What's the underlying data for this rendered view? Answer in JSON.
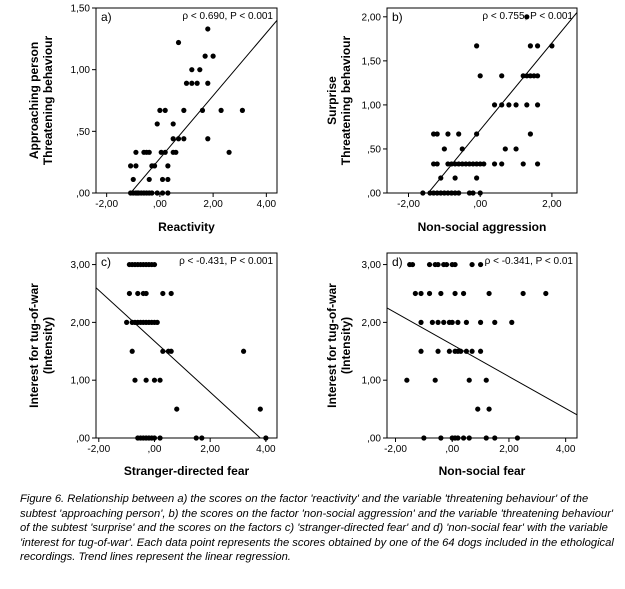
{
  "figure_caption": "Figure 6. Relationship between a) the scores on the factor 'reactivity' and the variable 'threatening behaviour' of the subtest 'approaching person', b) the scores on the factor 'non-social aggression' and the variable 'threatening behaviour' of the subtest 'surprise' and the scores on the factors c) 'stranger-directed fear' and d) 'non-social fear' with the variable 'interest for tug-of-war'. Each data point represents the scores obtained by one of the 64 dogs included in the ethological recordings. Trend lines represent the linear regression.",
  "chart_data": [
    {
      "type": "scatter",
      "panel": "a)",
      "stat": "ρ < 0.690, P < 0.001",
      "xlabel": "Reactivity",
      "ylabel_lines": [
        "Approaching person",
        "Threatening behaviour"
      ],
      "xlim": [
        -2.4,
        4.4
      ],
      "ylim": [
        0,
        1.5
      ],
      "xticks": [
        -2,
        0,
        2,
        4
      ],
      "xtick_labels": [
        "-2,00",
        ",00",
        "2,00",
        "4,00"
      ],
      "yticks": [
        0,
        0.5,
        1,
        1.5
      ],
      "ytick_labels": [
        ",00",
        ",50",
        "1,00",
        "1,50"
      ],
      "trend": {
        "from": [
          -1.1,
          0
        ],
        "to": [
          4.4,
          1.4
        ]
      },
      "points": [
        [
          -1.1,
          0
        ],
        [
          -1.0,
          0
        ],
        [
          -0.9,
          0
        ],
        [
          -0.85,
          0
        ],
        [
          -0.8,
          0
        ],
        [
          -0.7,
          0
        ],
        [
          -0.6,
          0
        ],
        [
          -0.5,
          0
        ],
        [
          -0.4,
          0
        ],
        [
          -0.3,
          0
        ],
        [
          -0.1,
          0
        ],
        [
          0.1,
          0
        ],
        [
          0.3,
          0
        ],
        [
          -1.0,
          0.11
        ],
        [
          -0.4,
          0.11
        ],
        [
          0.1,
          0.11
        ],
        [
          0.3,
          0.11
        ],
        [
          -1.1,
          0.22
        ],
        [
          -0.9,
          0.22
        ],
        [
          -0.3,
          0.22
        ],
        [
          -0.2,
          0.22
        ],
        [
          0.3,
          0.22
        ],
        [
          -0.9,
          0.33
        ],
        [
          -0.6,
          0.33
        ],
        [
          -0.5,
          0.33
        ],
        [
          -0.4,
          0.33
        ],
        [
          0.05,
          0.33
        ],
        [
          0.2,
          0.33
        ],
        [
          0.5,
          0.33
        ],
        [
          0.6,
          0.33
        ],
        [
          2.6,
          0.33
        ],
        [
          0.5,
          0.44
        ],
        [
          0.7,
          0.44
        ],
        [
          0.9,
          0.44
        ],
        [
          1.8,
          0.44
        ],
        [
          -0.1,
          0.56
        ],
        [
          0.5,
          0.56
        ],
        [
          0,
          0.67
        ],
        [
          0.2,
          0.67
        ],
        [
          0.9,
          0.67
        ],
        [
          1.6,
          0.67
        ],
        [
          2.3,
          0.67
        ],
        [
          3.1,
          0.67
        ],
        [
          1.0,
          0.89
        ],
        [
          1.2,
          0.89
        ],
        [
          1.4,
          0.89
        ],
        [
          1.8,
          0.89
        ],
        [
          1.2,
          1.0
        ],
        [
          1.5,
          1.0
        ],
        [
          1.7,
          1.11
        ],
        [
          2.0,
          1.11
        ],
        [
          0.7,
          1.22
        ],
        [
          1.8,
          1.33
        ]
      ]
    },
    {
      "type": "scatter",
      "panel": "b)",
      "stat": "ρ < 0.755, P < 0.001",
      "xlabel": "Non-social aggression",
      "ylabel_lines": [
        "Surprise",
        "Threatening behaviour"
      ],
      "xlim": [
        -2.6,
        2.7
      ],
      "ylim": [
        0,
        2.1
      ],
      "xticks": [
        -2,
        0,
        2
      ],
      "xtick_labels": [
        "-2,00",
        ",00",
        "2,00"
      ],
      "yticks": [
        0,
        0.5,
        1,
        1.5,
        2
      ],
      "ytick_labels": [
        ",00",
        ",50",
        "1,00",
        "1,50",
        "2,00"
      ],
      "trend": {
        "from": [
          -1.45,
          0
        ],
        "to": [
          2.7,
          2.05
        ]
      },
      "points": [
        [
          -1.6,
          0
        ],
        [
          -1.4,
          0
        ],
        [
          -1.3,
          0
        ],
        [
          -1.2,
          0
        ],
        [
          -1.1,
          0
        ],
        [
          -1.0,
          0
        ],
        [
          -0.9,
          0
        ],
        [
          -0.8,
          0
        ],
        [
          -0.7,
          0
        ],
        [
          -0.6,
          0
        ],
        [
          -0.3,
          0
        ],
        [
          -0.2,
          0
        ],
        [
          0,
          0
        ],
        [
          -1.1,
          0.17
        ],
        [
          -0.7,
          0.17
        ],
        [
          -0.1,
          0.17
        ],
        [
          -1.3,
          0.33
        ],
        [
          -1.2,
          0.33
        ],
        [
          -0.9,
          0.33
        ],
        [
          -0.8,
          0.33
        ],
        [
          -0.7,
          0.33
        ],
        [
          -0.6,
          0.33
        ],
        [
          -0.5,
          0.33
        ],
        [
          -0.4,
          0.33
        ],
        [
          -0.3,
          0.33
        ],
        [
          -0.2,
          0.33
        ],
        [
          -0.1,
          0.33
        ],
        [
          0,
          0.33
        ],
        [
          0.1,
          0.33
        ],
        [
          0.4,
          0.33
        ],
        [
          0.6,
          0.33
        ],
        [
          1.2,
          0.33
        ],
        [
          1.6,
          0.33
        ],
        [
          -1.3,
          0.67
        ],
        [
          -1.2,
          0.67
        ],
        [
          -0.9,
          0.67
        ],
        [
          -0.6,
          0.67
        ],
        [
          -0.1,
          0.67
        ],
        [
          1.4,
          0.67
        ],
        [
          -1.0,
          0.5
        ],
        [
          -0.5,
          0.5
        ],
        [
          0.7,
          0.5
        ],
        [
          1.0,
          0.5
        ],
        [
          0.4,
          1.0
        ],
        [
          0.6,
          1.0
        ],
        [
          0.8,
          1.0
        ],
        [
          1.0,
          1.0
        ],
        [
          1.3,
          1.0
        ],
        [
          1.6,
          1.0
        ],
        [
          0,
          1.33
        ],
        [
          0.6,
          1.33
        ],
        [
          1.2,
          1.33
        ],
        [
          1.3,
          1.33
        ],
        [
          1.4,
          1.33
        ],
        [
          1.5,
          1.33
        ],
        [
          1.6,
          1.33
        ],
        [
          -0.1,
          1.67
        ],
        [
          1.4,
          1.67
        ],
        [
          1.6,
          1.67
        ],
        [
          2.0,
          1.67
        ],
        [
          1.3,
          2.0
        ]
      ]
    },
    {
      "type": "scatter",
      "panel": "c)",
      "stat": "ρ < -0.431, P < 0.001",
      "xlabel": "Stranger-directed fear",
      "ylabel_lines": [
        "Interest for tug-of-war",
        "(Intensity)"
      ],
      "xlim": [
        -2.1,
        4.4
      ],
      "ylim": [
        0,
        3.2
      ],
      "xticks": [
        -2,
        0,
        2,
        4
      ],
      "xtick_labels": [
        "-2,00",
        ",00",
        "2,00",
        "4,00"
      ],
      "yticks": [
        0,
        1,
        2,
        3
      ],
      "ytick_labels": [
        ",00",
        "1,00",
        "2,00",
        "3,00"
      ],
      "trend": {
        "from": [
          -2.1,
          2.6
        ],
        "to": [
          3.8,
          0
        ]
      },
      "points": [
        [
          -0.9,
          3
        ],
        [
          -0.8,
          3
        ],
        [
          -0.7,
          3
        ],
        [
          -0.6,
          3
        ],
        [
          -0.5,
          3
        ],
        [
          -0.4,
          3
        ],
        [
          -0.3,
          3
        ],
        [
          -0.2,
          3
        ],
        [
          -0.1,
          3
        ],
        [
          0,
          3
        ],
        [
          -0.9,
          2.5
        ],
        [
          -0.6,
          2.5
        ],
        [
          -0.4,
          2.5
        ],
        [
          -0.3,
          2.5
        ],
        [
          0.3,
          2.5
        ],
        [
          0.6,
          2.5
        ],
        [
          -1.0,
          2
        ],
        [
          -0.8,
          2
        ],
        [
          -0.7,
          2
        ],
        [
          -0.6,
          2
        ],
        [
          -0.5,
          2
        ],
        [
          -0.4,
          2
        ],
        [
          -0.3,
          2
        ],
        [
          -0.2,
          2
        ],
        [
          -0.1,
          2
        ],
        [
          0,
          2
        ],
        [
          0.1,
          2
        ],
        [
          -0.8,
          1.5
        ],
        [
          0.3,
          1.5
        ],
        [
          0.5,
          1.5
        ],
        [
          0.6,
          1.5
        ],
        [
          3.2,
          1.5
        ],
        [
          -0.7,
          1.0
        ],
        [
          -0.3,
          1.0
        ],
        [
          0,
          1.0
        ],
        [
          0.2,
          1.0
        ],
        [
          0.8,
          0.5
        ],
        [
          3.8,
          0.5
        ],
        [
          -0.6,
          0
        ],
        [
          -0.5,
          0
        ],
        [
          -0.4,
          0
        ],
        [
          -0.3,
          0
        ],
        [
          -0.2,
          0
        ],
        [
          -0.1,
          0
        ],
        [
          0,
          0
        ],
        [
          0.2,
          0
        ],
        [
          1.5,
          0
        ],
        [
          1.7,
          0
        ],
        [
          4.0,
          0
        ]
      ]
    },
    {
      "type": "scatter",
      "panel": "d)",
      "stat": "ρ < -0.341, P < 0.01",
      "xlabel": "Non-social fear",
      "ylabel_lines": [
        "Interest for tug-of-war",
        "(Intensity)"
      ],
      "xlim": [
        -2.3,
        4.4
      ],
      "ylim": [
        0,
        3.2
      ],
      "xticks": [
        -2,
        0,
        2,
        4
      ],
      "xtick_labels": [
        "-2,00",
        ",00",
        "2,00",
        "4,00"
      ],
      "yticks": [
        0,
        1,
        2,
        3
      ],
      "ytick_labels": [
        ",00",
        "1,00",
        "2,00",
        "3,00"
      ],
      "trend": {
        "from": [
          -2.3,
          2.25
        ],
        "to": [
          4.4,
          0.4
        ]
      },
      "points": [
        [
          -1.5,
          3
        ],
        [
          -1.4,
          3
        ],
        [
          -0.8,
          3
        ],
        [
          -0.6,
          3
        ],
        [
          -0.5,
          3
        ],
        [
          -0.3,
          3
        ],
        [
          -0.2,
          3
        ],
        [
          0,
          3
        ],
        [
          0.1,
          3
        ],
        [
          0.7,
          3
        ],
        [
          1.0,
          3
        ],
        [
          -1.3,
          2.5
        ],
        [
          -1.1,
          2.5
        ],
        [
          -0.8,
          2.5
        ],
        [
          -0.4,
          2.5
        ],
        [
          0.1,
          2.5
        ],
        [
          0.4,
          2.5
        ],
        [
          1.3,
          2.5
        ],
        [
          2.5,
          2.5
        ],
        [
          3.3,
          2.5
        ],
        [
          -1.1,
          2
        ],
        [
          -0.7,
          2
        ],
        [
          -0.5,
          2
        ],
        [
          -0.3,
          2
        ],
        [
          -0.1,
          2
        ],
        [
          0,
          2
        ],
        [
          0.2,
          2
        ],
        [
          0.5,
          2
        ],
        [
          1.0,
          2
        ],
        [
          1.5,
          2
        ],
        [
          2.1,
          2
        ],
        [
          -1.1,
          1.5
        ],
        [
          -0.5,
          1.5
        ],
        [
          -0.1,
          1.5
        ],
        [
          0.1,
          1.5
        ],
        [
          0.2,
          1.5
        ],
        [
          0.3,
          1.5
        ],
        [
          0.5,
          1.5
        ],
        [
          0.7,
          1.5
        ],
        [
          1.0,
          1.5
        ],
        [
          -1.6,
          1.0
        ],
        [
          -0.6,
          1.0
        ],
        [
          0.6,
          1.0
        ],
        [
          1.2,
          1.0
        ],
        [
          0.9,
          0.5
        ],
        [
          1.3,
          0.5
        ],
        [
          -1.0,
          0
        ],
        [
          -0.4,
          0
        ],
        [
          0,
          0
        ],
        [
          0.1,
          0
        ],
        [
          0.2,
          0
        ],
        [
          0.4,
          0
        ],
        [
          0.6,
          0
        ],
        [
          1.2,
          0
        ],
        [
          1.5,
          0
        ],
        [
          2.3,
          0
        ]
      ]
    }
  ]
}
